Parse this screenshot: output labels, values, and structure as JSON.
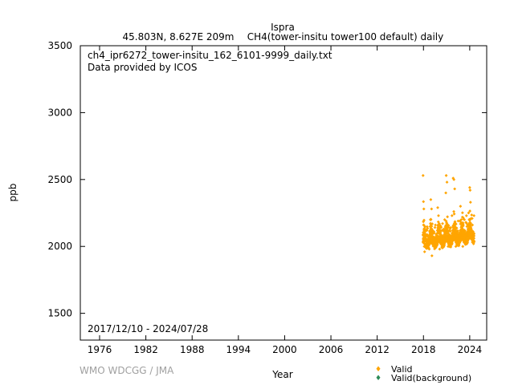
{
  "header": {
    "station": "Ispra",
    "location": "45.803N, 8.627E 209m",
    "series": "CH4(tower-insitu tower100 default) daily"
  },
  "annotations": {
    "file": "ch4_ipr6272_tower-insitu_162_6101-9999_daily.txt",
    "provider": "Data provided by ICOS",
    "date_range": "2017/12/10 - 2024/07/28"
  },
  "footer": {
    "credit": "WMO WDCGG / JMA"
  },
  "colors": {
    "valid": "#ffa500",
    "background": "#2e8b57"
  },
  "chart_data": {
    "type": "scatter",
    "xlabel": "Year",
    "ylabel": "ppb",
    "xlim": [
      1973.5,
      2026.2
    ],
    "ylim": [
      1300,
      3500
    ],
    "xticks": [
      1976,
      1982,
      1988,
      1994,
      2000,
      2006,
      2012,
      2018,
      2024
    ],
    "yticks": [
      1500,
      2000,
      2500,
      3000,
      3500
    ],
    "legend": {
      "placement": "bottom-right",
      "entries": [
        "Valid",
        "Valid(background)"
      ]
    },
    "series": [
      {
        "name": "Valid",
        "points": [
          [
            2017.95,
            2530
          ],
          [
            2018.0,
            2335
          ],
          [
            2018.05,
            2280
          ],
          [
            2018.1,
            2000
          ],
          [
            2018.15,
            1960
          ],
          [
            2018.3,
            2060
          ],
          [
            2018.45,
            2120
          ],
          [
            2018.6,
            2050
          ],
          [
            2018.75,
            1980
          ],
          [
            2018.9,
            2200
          ],
          [
            2018.95,
            2350
          ],
          [
            2019.05,
            2280
          ],
          [
            2019.1,
            1930
          ],
          [
            2019.25,
            2040
          ],
          [
            2019.4,
            2100
          ],
          [
            2019.55,
            2160
          ],
          [
            2019.7,
            2080
          ],
          [
            2019.85,
            2290
          ],
          [
            2019.95,
            2230
          ],
          [
            2020.1,
            1980
          ],
          [
            2020.25,
            2060
          ],
          [
            2020.4,
            2120
          ],
          [
            2020.55,
            2010
          ],
          [
            2020.75,
            2200
          ],
          [
            2020.9,
            2400
          ],
          [
            2020.95,
            2530
          ],
          [
            2021.05,
            2480
          ],
          [
            2021.2,
            2000
          ],
          [
            2021.4,
            2120
          ],
          [
            2021.55,
            2050
          ],
          [
            2021.7,
            2230
          ],
          [
            2021.85,
            2510
          ],
          [
            2021.95,
            2500
          ],
          [
            2022.05,
            2430
          ],
          [
            2022.2,
            2000
          ],
          [
            2022.35,
            2100
          ],
          [
            2022.5,
            2190
          ],
          [
            2022.65,
            2070
          ],
          [
            2022.8,
            2300
          ],
          [
            2022.9,
            2200
          ],
          [
            2023.1,
            2000
          ],
          [
            2023.3,
            2110
          ],
          [
            2023.5,
            2180
          ],
          [
            2023.7,
            2040
          ],
          [
            2023.85,
            2250
          ],
          [
            2024.0,
            2440
          ],
          [
            2024.05,
            2420
          ],
          [
            2024.1,
            2330
          ],
          [
            2024.2,
            2060
          ],
          [
            2024.35,
            2160
          ],
          [
            2024.5,
            2100
          ],
          [
            2024.55,
            2230
          ]
        ]
      },
      {
        "name": "Valid(background)",
        "points": []
      }
    ]
  }
}
